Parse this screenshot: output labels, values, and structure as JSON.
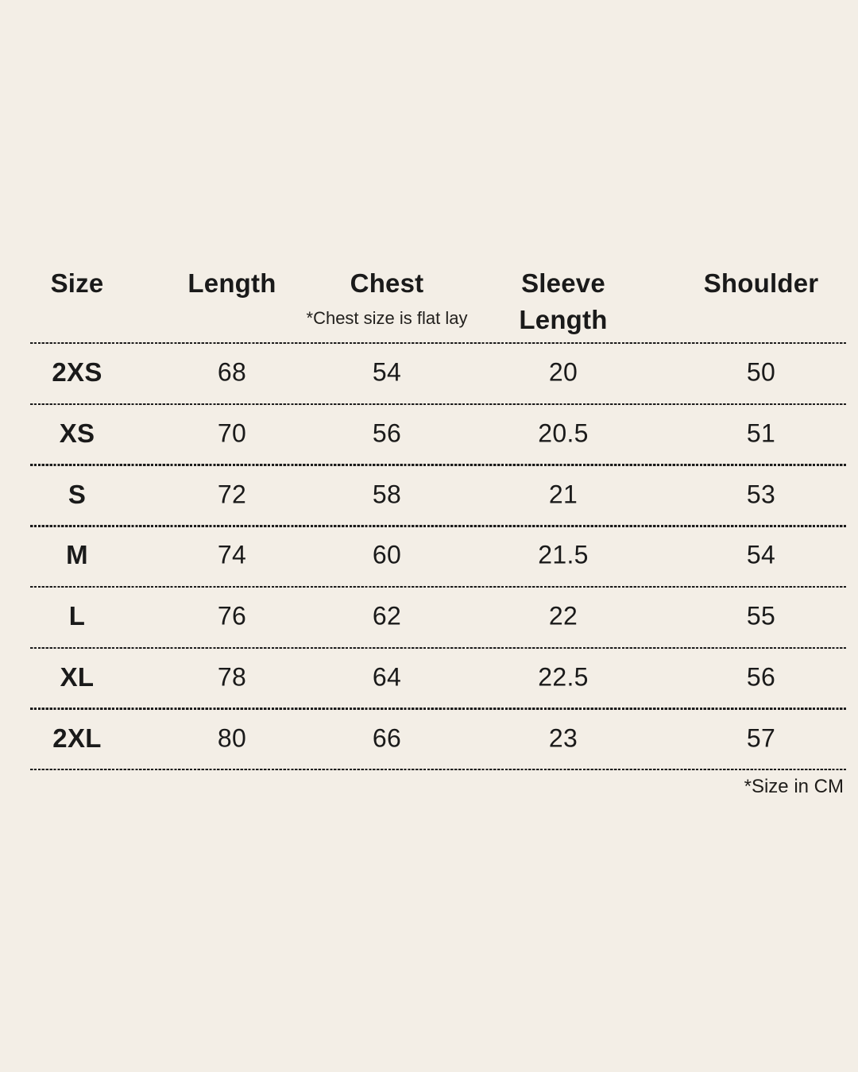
{
  "canvas": {
    "background": "#F3EEE6",
    "text_color": "#1A1A1A"
  },
  "table": {
    "headers": [
      {
        "label": "Size"
      },
      {
        "label": "Length"
      },
      {
        "label": "Chest",
        "note": "*Chest size is flat lay"
      },
      {
        "label": "Sleeve",
        "label_line2": "Length"
      },
      {
        "label": "Shoulder"
      }
    ],
    "rows": [
      {
        "size": "2XS",
        "length": "68",
        "chest": "54",
        "sleeve_length": "20",
        "shoulder": "50"
      },
      {
        "size": "XS",
        "length": "70",
        "chest": "56",
        "sleeve_length": "20.5",
        "shoulder": "51"
      },
      {
        "size": "S",
        "length": "72",
        "chest": "58",
        "sleeve_length": "21",
        "shoulder": "53"
      },
      {
        "size": "M",
        "length": "74",
        "chest": "60",
        "sleeve_length": "21.5",
        "shoulder": "54"
      },
      {
        "size": "L",
        "length": "76",
        "chest": "62",
        "sleeve_length": "22",
        "shoulder": "55"
      },
      {
        "size": "XL",
        "length": "78",
        "chest": "64",
        "sleeve_length": "22.5",
        "shoulder": "56"
      },
      {
        "size": "2XL",
        "length": "80",
        "chest": "66",
        "sleeve_length": "23",
        "shoulder": "57"
      }
    ],
    "footnote": "*Size in CM"
  },
  "chart_data": {
    "type": "table",
    "columns": [
      "Size",
      "Length",
      "Chest",
      "Sleeve Length",
      "Shoulder"
    ],
    "rows": [
      [
        "2XS",
        68,
        54,
        20,
        50
      ],
      [
        "XS",
        70,
        56,
        20.5,
        51
      ],
      [
        "S",
        72,
        58,
        21,
        53
      ],
      [
        "M",
        74,
        60,
        21.5,
        54
      ],
      [
        "L",
        76,
        62,
        22,
        55
      ],
      [
        "XL",
        78,
        64,
        22.5,
        56
      ],
      [
        "2XL",
        80,
        66,
        23,
        57
      ]
    ],
    "annotations": [
      "*Chest size is flat lay",
      "*Size in CM"
    ],
    "units": "cm",
    "layout": {
      "grid": "dashed horizontal row separators",
      "alignment": "all columns centered"
    }
  }
}
